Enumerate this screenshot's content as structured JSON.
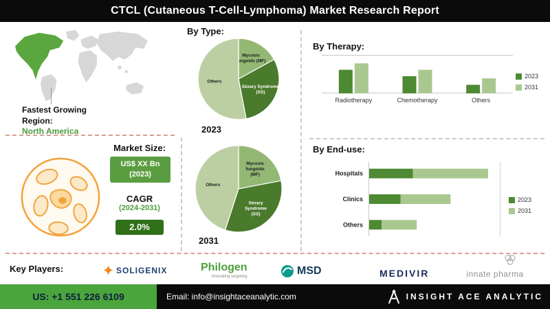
{
  "header": {
    "title": "CTCL (Cutaneous T-Cell-Lymphoma) Market Research Report"
  },
  "region": {
    "label": "Fastest Growing Region:",
    "value": "North America"
  },
  "market": {
    "size_label": "Market Size:",
    "size_value": "US$ XX Bn",
    "size_year": "(2023)",
    "cagr_label": "CAGR",
    "cagr_period": "(2024-2031)",
    "cagr_value": "2.0%"
  },
  "key_players": {
    "label": "Key Players:",
    "players": [
      {
        "name": "SOLIGENIX"
      },
      {
        "name": "Philogen",
        "tagline": "innovating targeting"
      },
      {
        "name": "MSD"
      },
      {
        "name": "MEDIVIR"
      },
      {
        "name": "innate pharma"
      }
    ]
  },
  "footer": {
    "phone": "US: +1 551 226 6109",
    "email": "Email: info@insightaceanalytic.com",
    "brand": "INSIGHT ACE ANALYTIC"
  },
  "colors": {
    "header_bg": "#0b0b0b",
    "accent_green": "#5a9e41",
    "accent_green_dark": "#2f7019",
    "map_green": "#5aa63f",
    "bar_2023": "#4e8a33",
    "bar_2031": "#a9c88f",
    "pie_dark": "#4a7a2c",
    "pie_medium": "#93b874",
    "pie_light": "#bccfa3",
    "footer_green": "#4aa53c",
    "cell_orange": "#f2a33c"
  },
  "chart_data": [
    {
      "id": "by_type_2023",
      "type": "pie",
      "title": "By Type:",
      "year": "2023",
      "legend_position": "inside",
      "slices": [
        {
          "label": "Mycosis\nfungoids (MF)",
          "value": 17,
          "color": "#93b874",
          "text_color": "#1a1a1a"
        },
        {
          "label": "Sézary Syndrome\n(SS)",
          "value": 30,
          "color": "#4a7a2c",
          "text_color": "#ffffff"
        },
        {
          "label": "Others",
          "value": 53,
          "color": "#bccfa3",
          "text_color": "#1a1a1a"
        }
      ]
    },
    {
      "id": "by_type_2031",
      "type": "pie",
      "title": "By Type:",
      "year": "2031",
      "legend_position": "inside",
      "slices": [
        {
          "label": "Mycosis\nfungoids\n(MF)",
          "value": 22,
          "color": "#93b874",
          "text_color": "#1a1a1a"
        },
        {
          "label": "Sézary\nSyndrome\n(SS)",
          "value": 33,
          "color": "#4a7a2c",
          "text_color": "#ffffff"
        },
        {
          "label": "Others",
          "value": 45,
          "color": "#bccfa3",
          "text_color": "#1a1a1a"
        }
      ]
    },
    {
      "id": "by_therapy",
      "type": "bar",
      "title": "By Therapy:",
      "categories": [
        "Radiotherapy",
        "Chemotherapy",
        "Others"
      ],
      "series": [
        {
          "name": "2023",
          "color": "#4e8a33",
          "values": [
            55,
            40,
            20
          ]
        },
        {
          "name": "2031",
          "color": "#a9c88f",
          "values": [
            70,
            55,
            35
          ]
        }
      ],
      "ylim": [
        0,
        80
      ],
      "grid": false,
      "legend_position": "right"
    },
    {
      "id": "by_end_use",
      "type": "hbar-stacked",
      "title": "By End-use:",
      "categories": [
        "Hospitals",
        "Clinics",
        "Others"
      ],
      "series": [
        {
          "name": "2023",
          "color": "#4e8a33",
          "values": [
            35,
            25,
            10
          ]
        },
        {
          "name": "2031",
          "color": "#a9c88f",
          "values": [
            60,
            40,
            28
          ]
        }
      ],
      "xlim": [
        0,
        100
      ],
      "grid": false,
      "legend_position": "right"
    }
  ]
}
